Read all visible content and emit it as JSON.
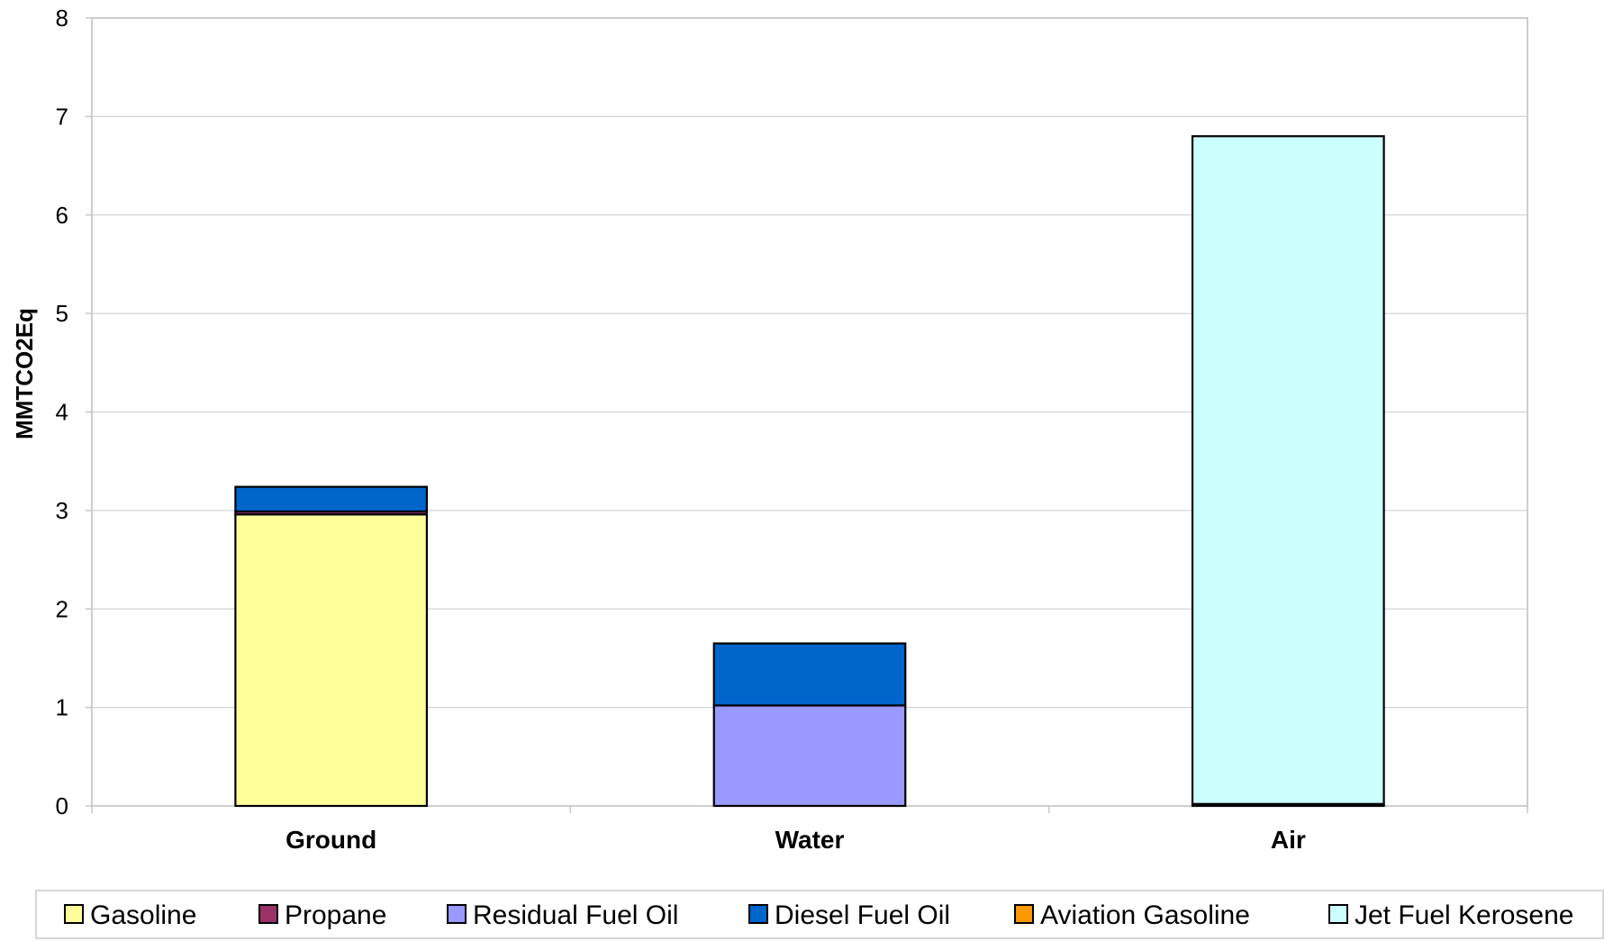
{
  "chart_data": {
    "type": "bar",
    "stacked": true,
    "categories": [
      "Ground",
      "Water",
      "Air"
    ],
    "series": [
      {
        "name": "Gasoline",
        "color": "#ffff99",
        "values": [
          2.96,
          0,
          0
        ]
      },
      {
        "name": "Propane",
        "color": "#993366",
        "values": [
          0.03,
          0,
          0
        ]
      },
      {
        "name": "Residual Fuel Oil",
        "color": "#9999ff",
        "values": [
          0,
          1.02,
          0
        ]
      },
      {
        "name": "Diesel Fuel Oil",
        "color": "#0066cc",
        "values": [
          0.25,
          0.63,
          0
        ]
      },
      {
        "name": "Aviation Gasoline",
        "color": "#ff9900",
        "values": [
          0,
          0,
          0.02
        ]
      },
      {
        "name": "Jet Fuel Kerosene",
        "color": "#ccffff",
        "values": [
          0,
          0,
          6.78
        ]
      }
    ],
    "xlabel": "",
    "ylabel": "MMTCO2Eq",
    "ylim": [
      0,
      8
    ],
    "yticks": [
      "0",
      "1",
      "2",
      "3",
      "4",
      "5",
      "6",
      "7",
      "8"
    ],
    "grid": true,
    "legend_position": "bottom"
  }
}
